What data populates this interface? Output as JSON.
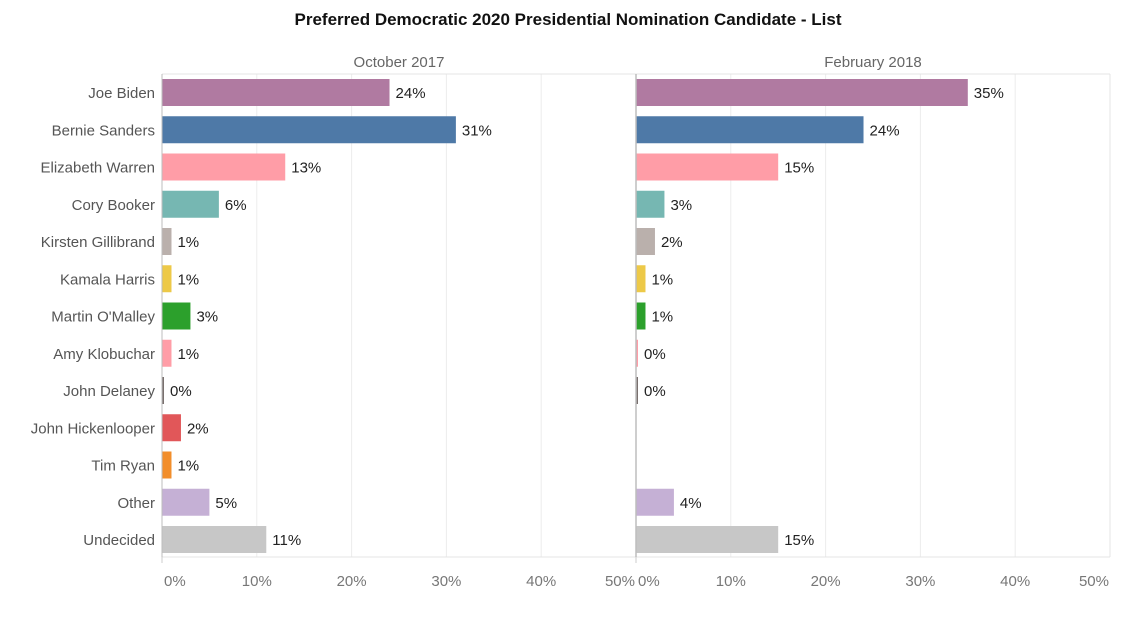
{
  "chart_data": {
    "type": "bar",
    "orientation": "horizontal",
    "title": "Preferred Democratic 2020 Presidential Nomination Candidate - List",
    "xlim": [
      0,
      50
    ],
    "x_ticks": [
      "0%",
      "10%",
      "20%",
      "30%",
      "40%",
      "50%"
    ],
    "value_suffix": "%",
    "grid": true,
    "categories": [
      "Joe Biden",
      "Bernie Sanders",
      "Elizabeth Warren",
      "Cory Booker",
      "Kirsten Gillibrand",
      "Kamala Harris",
      "Martin O'Malley",
      "Amy Klobuchar",
      "John Delaney",
      "John Hickenlooper",
      "Tim Ryan",
      "Other",
      "Undecided"
    ],
    "colors": [
      "#b07aa1",
      "#4e79a7",
      "#ff9da7",
      "#76b7b2",
      "#bab0ac",
      "#edc948",
      "#2ca02c",
      "#ff9da7",
      "#79706e",
      "#e15759",
      "#f28e2b",
      "#c5b0d5",
      "#c7c7c7"
    ],
    "series": [
      {
        "name": "October 2017",
        "values": [
          24,
          31,
          13,
          6,
          1,
          1,
          3,
          1,
          0,
          2,
          1,
          5,
          11
        ]
      },
      {
        "name": "February 2018",
        "values": [
          35,
          24,
          15,
          3,
          2,
          1,
          1,
          0,
          0,
          null,
          null,
          4,
          15
        ]
      }
    ]
  }
}
